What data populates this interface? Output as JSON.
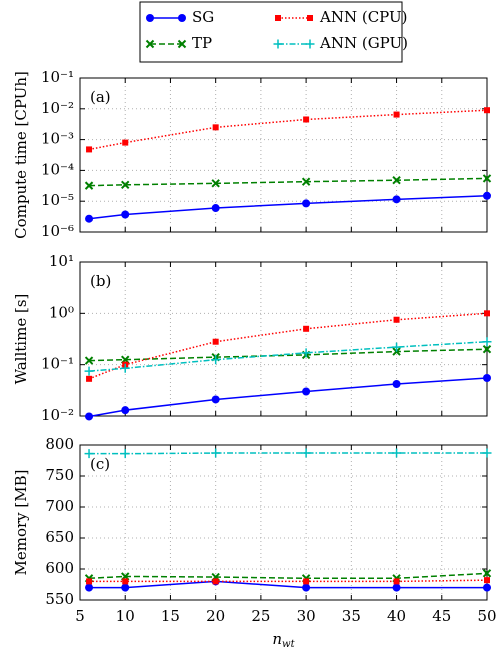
{
  "chart_data": [
    {
      "type": "line",
      "annotation": "(a)",
      "y_label": "Compute time [CPUh]",
      "log_y": true,
      "grid": true,
      "xlim": [
        5,
        50
      ],
      "xticks": [
        5,
        10,
        15,
        20,
        25,
        30,
        35,
        40,
        45,
        50
      ],
      "ylim": [
        1e-06,
        0.1
      ],
      "yticks": [
        {
          "value": 1e-06,
          "label": "10⁻⁶"
        },
        {
          "value": 1e-05,
          "label": "10⁻⁵"
        },
        {
          "value": 0.0001,
          "label": "10⁻⁴"
        },
        {
          "value": 0.001,
          "label": "10⁻³"
        },
        {
          "value": 0.01,
          "label": "10⁻²"
        },
        {
          "value": 0.1,
          "label": "10⁻¹"
        }
      ],
      "x": [
        6,
        10,
        20,
        30,
        40,
        50
      ],
      "series": [
        {
          "color": "#0000ff",
          "marker": "circle",
          "linestyle": "solid",
          "values": [
            2.7e-06,
            3.7e-06,
            6e-06,
            8.5e-06,
            1.15e-05,
            1.5e-05
          ]
        },
        {
          "color": "#008000",
          "marker": "x",
          "linestyle": "dashed",
          "values": [
            3.2e-05,
            3.4e-05,
            3.8e-05,
            4.3e-05,
            4.8e-05,
            5.5e-05
          ]
        },
        {
          "color": "#ff0000",
          "marker": "square",
          "linestyle": "dotted",
          "values": [
            0.00048,
            0.0008,
            0.0025,
            0.0045,
            0.0065,
            0.009
          ]
        }
      ]
    },
    {
      "type": "line",
      "annotation": "(b)",
      "y_label": "Walltime [s]",
      "log_y": true,
      "grid": true,
      "xlim": [
        5,
        50
      ],
      "xticks": [
        5,
        10,
        15,
        20,
        25,
        30,
        35,
        40,
        45,
        50
      ],
      "ylim": [
        0.01,
        10
      ],
      "yticks": [
        {
          "value": 0.01,
          "label": "10⁻²"
        },
        {
          "value": 0.1,
          "label": "10⁻¹"
        },
        {
          "value": 1,
          "label": "10⁰"
        },
        {
          "value": 10,
          "label": "10¹"
        }
      ],
      "x": [
        6,
        10,
        20,
        30,
        40,
        50
      ],
      "series": [
        {
          "name": "SG",
          "color": "#0000ff",
          "marker": "circle",
          "linestyle": "solid",
          "values": [
            0.0098,
            0.013,
            0.021,
            0.03,
            0.042,
            0.055
          ]
        },
        {
          "name": "TP",
          "color": "#008000",
          "marker": "x",
          "linestyle": "dashed",
          "values": [
            0.12,
            0.125,
            0.14,
            0.155,
            0.18,
            0.2
          ]
        },
        {
          "name": "ANN (CPU)",
          "color": "#ff0000",
          "marker": "square",
          "linestyle": "dotted",
          "values": [
            0.053,
            0.1,
            0.28,
            0.5,
            0.75,
            1.0
          ]
        },
        {
          "name": "ANN (GPU)",
          "color": "#00bfbf",
          "marker": "plus",
          "linestyle": "dashdot",
          "values": [
            0.075,
            0.085,
            0.125,
            0.17,
            0.22,
            0.28
          ]
        }
      ]
    },
    {
      "type": "line",
      "annotation": "(c)",
      "y_label": "Memory [MB]",
      "log_y": false,
      "grid": true,
      "x_label": {
        "main": "n",
        "sub": "wt"
      },
      "xlim": [
        5,
        50
      ],
      "xticks": [
        5,
        10,
        15,
        20,
        25,
        30,
        35,
        40,
        45,
        50
      ],
      "ylim": [
        550,
        800
      ],
      "yticks": [
        550,
        600,
        650,
        700,
        750,
        800
      ],
      "x": [
        6,
        10,
        20,
        30,
        40,
        50
      ],
      "series": [
        {
          "color": "#0000ff",
          "marker": "circle",
          "linestyle": "solid",
          "values": [
            570,
            570,
            580,
            570,
            570,
            570
          ]
        },
        {
          "color": "#008000",
          "marker": "x",
          "linestyle": "dashed",
          "values": [
            585,
            588,
            587,
            585,
            585,
            593
          ]
        },
        {
          "color": "#ff0000",
          "marker": "square",
          "linestyle": "dotted",
          "values": [
            580,
            580,
            580,
            580,
            580,
            582
          ]
        },
        {
          "color": "#00bfbf",
          "marker": "plus",
          "linestyle": "dashdot",
          "values": [
            786,
            786,
            787,
            787,
            787,
            787
          ]
        }
      ]
    }
  ]
}
